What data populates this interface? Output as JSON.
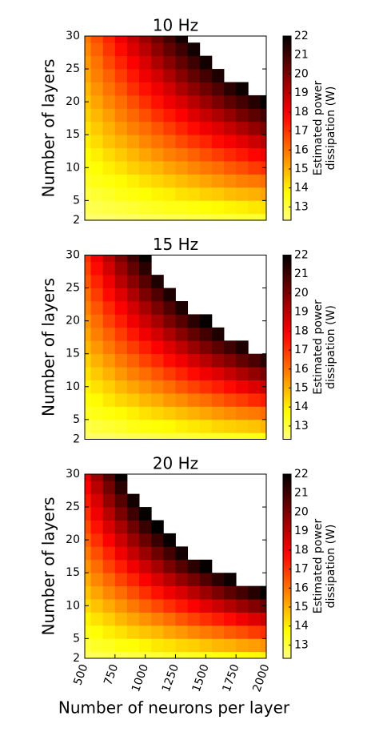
{
  "chart_data": [
    {
      "type": "heatmap",
      "title": "10 Hz",
      "y_label": "Number of layers",
      "colorbar_label": [
        "Estimated power",
        "dissipation (W)"
      ],
      "cmap": "hot_r",
      "x": [
        500,
        600,
        700,
        800,
        900,
        1000,
        1100,
        1200,
        1300,
        1400,
        1500,
        1600,
        1700,
        1800,
        1900,
        2000
      ],
      "y": [
        2,
        4,
        6,
        8,
        10,
        12,
        14,
        16,
        18,
        20,
        22,
        24,
        26,
        28,
        30
      ],
      "values": [
        [
          12.5,
          12.6,
          12.6,
          12.7,
          12.7,
          12.8,
          12.8,
          12.9,
          12.9,
          13.0,
          13.0,
          13.1,
          13.1,
          13.2,
          13.2,
          13.3
        ],
        [
          12.8,
          12.9,
          13.0,
          13.1,
          13.2,
          13.3,
          13.4,
          13.5,
          13.5,
          13.6,
          13.7,
          13.8,
          13.9,
          14.0,
          14.1,
          14.2
        ],
        [
          13.0,
          13.2,
          13.3,
          13.5,
          13.6,
          13.7,
          13.9,
          14.0,
          14.2,
          14.3,
          14.5,
          14.6,
          14.8,
          14.9,
          15.0,
          15.2
        ],
        [
          13.3,
          13.5,
          13.6,
          13.8,
          14.0,
          14.2,
          14.4,
          14.6,
          14.8,
          15.0,
          15.2,
          15.4,
          15.6,
          15.8,
          15.9,
          16.1
        ],
        [
          13.5,
          13.7,
          14.0,
          14.2,
          14.5,
          14.7,
          14.9,
          15.2,
          15.4,
          15.7,
          15.9,
          16.1,
          16.4,
          16.6,
          16.9,
          17.1
        ],
        [
          13.7,
          14.0,
          14.3,
          14.6,
          14.9,
          15.2,
          15.5,
          15.8,
          16.0,
          16.3,
          16.6,
          16.9,
          17.2,
          17.5,
          17.8,
          18.1
        ],
        [
          14.0,
          14.3,
          14.7,
          15.0,
          15.3,
          15.7,
          16.0,
          16.3,
          16.7,
          17.0,
          17.3,
          17.7,
          18.0,
          18.3,
          18.7,
          19.0
        ],
        [
          14.2,
          14.6,
          15.0,
          15.4,
          15.8,
          16.1,
          16.5,
          16.9,
          17.3,
          17.7,
          18.1,
          18.4,
          18.8,
          19.2,
          19.6,
          20.0
        ],
        [
          14.5,
          14.9,
          15.3,
          15.8,
          16.2,
          16.6,
          17.1,
          17.5,
          17.9,
          18.4,
          18.8,
          19.2,
          19.6,
          20.1,
          20.5,
          20.9
        ],
        [
          14.7,
          15.2,
          15.7,
          16.1,
          16.6,
          17.1,
          17.6,
          18.1,
          18.5,
          19.0,
          19.5,
          20.0,
          20.5,
          20.9,
          21.4,
          21.9
        ],
        [
          14.9,
          15.5,
          16.0,
          16.5,
          17.1,
          17.6,
          18.1,
          18.6,
          19.2,
          19.7,
          20.2,
          20.7,
          21.3,
          21.8,
          null,
          null
        ],
        [
          15.2,
          15.8,
          16.3,
          16.9,
          17.5,
          18.1,
          18.6,
          19.2,
          19.8,
          20.4,
          20.9,
          21.5,
          null,
          null,
          null,
          null
        ],
        [
          15.4,
          16.0,
          16.7,
          17.3,
          17.9,
          18.5,
          19.2,
          19.8,
          20.4,
          21.0,
          21.7,
          null,
          null,
          null,
          null,
          null
        ],
        [
          15.7,
          16.3,
          17.0,
          17.7,
          18.4,
          19.0,
          19.7,
          20.4,
          21.0,
          21.7,
          null,
          null,
          null,
          null,
          null,
          null
        ],
        [
          15.9,
          16.6,
          17.3,
          18.1,
          18.8,
          19.5,
          20.2,
          20.9,
          21.7,
          null,
          null,
          null,
          null,
          null,
          null,
          null
        ]
      ],
      "xlim": [
        500,
        2000
      ],
      "ylim": [
        2,
        30
      ],
      "yticks": [
        2,
        5,
        10,
        15,
        20,
        25,
        30
      ],
      "clim": [
        12.3,
        22
      ],
      "cticks": [
        13,
        14,
        15,
        16,
        17,
        18,
        19,
        20,
        21,
        22
      ]
    },
    {
      "type": "heatmap",
      "title": "15 Hz",
      "y_label": "Number of layers",
      "colorbar_label": [
        "Estimated power",
        "dissipation (W)"
      ],
      "cmap": "hot_r",
      "x": [
        500,
        600,
        700,
        800,
        900,
        1000,
        1100,
        1200,
        1300,
        1400,
        1500,
        1600,
        1700,
        1800,
        1900,
        2000
      ],
      "y": [
        2,
        4,
        6,
        8,
        10,
        12,
        14,
        16,
        18,
        20,
        22,
        24,
        26,
        28,
        30
      ],
      "values": [
        [
          12.6,
          12.7,
          12.7,
          12.8,
          12.9,
          12.9,
          13.0,
          13.1,
          13.1,
          13.2,
          13.3,
          13.3,
          13.4,
          13.4,
          13.5,
          13.6
        ],
        [
          12.9,
          13.1,
          13.2,
          13.3,
          13.5,
          13.6,
          13.7,
          13.8,
          14.0,
          14.1,
          14.2,
          14.4,
          14.5,
          14.6,
          14.7,
          14.9
        ],
        [
          13.3,
          13.5,
          13.6,
          13.8,
          14.0,
          14.2,
          14.4,
          14.6,
          14.8,
          15.0,
          15.2,
          15.4,
          15.6,
          15.8,
          15.9,
          16.1
        ],
        [
          13.6,
          13.8,
          14.1,
          14.4,
          14.6,
          14.9,
          15.1,
          15.4,
          15.6,
          15.9,
          16.1,
          16.4,
          16.7,
          16.9,
          17.2,
          17.4
        ],
        [
          13.9,
          14.2,
          14.5,
          14.9,
          15.2,
          15.5,
          15.8,
          16.1,
          16.5,
          16.8,
          17.1,
          17.4,
          17.7,
          18.1,
          18.4,
          18.7
        ],
        [
          14.2,
          14.6,
          15.0,
          15.4,
          15.8,
          16.1,
          16.5,
          16.9,
          17.3,
          17.7,
          18.1,
          18.4,
          18.8,
          19.2,
          19.6,
          20.0
        ],
        [
          14.5,
          15.0,
          15.4,
          15.9,
          16.3,
          16.8,
          17.2,
          17.7,
          18.1,
          18.6,
          19.0,
          19.5,
          19.9,
          20.4,
          20.8,
          21.3
        ],
        [
          14.9,
          15.4,
          15.9,
          16.4,
          16.9,
          17.4,
          17.9,
          18.4,
          18.9,
          19.5,
          20.0,
          20.5,
          21.0,
          21.5,
          null,
          null
        ],
        [
          15.2,
          15.8,
          16.3,
          16.9,
          17.5,
          18.1,
          18.6,
          19.2,
          19.8,
          20.4,
          20.9,
          21.5,
          null,
          null,
          null,
          null
        ],
        [
          15.5,
          16.1,
          16.8,
          17.4,
          18.1,
          18.7,
          19.3,
          20.0,
          20.6,
          21.3,
          21.9,
          null,
          null,
          null,
          null,
          null
        ],
        [
          15.8,
          16.5,
          17.2,
          17.9,
          18.6,
          19.3,
          20.0,
          20.7,
          21.5,
          null,
          null,
          null,
          null,
          null,
          null,
          null
        ],
        [
          16.1,
          16.9,
          17.7,
          18.4,
          19.2,
          20.0,
          20.7,
          21.5,
          null,
          null,
          null,
          null,
          null,
          null,
          null,
          null
        ],
        [
          16.5,
          17.3,
          18.1,
          19.0,
          19.8,
          20.6,
          21.5,
          null,
          null,
          null,
          null,
          null,
          null,
          null,
          null,
          null
        ],
        [
          16.8,
          17.7,
          18.6,
          19.5,
          20.4,
          21.3,
          null,
          null,
          null,
          null,
          null,
          null,
          null,
          null,
          null,
          null
        ],
        [
          17.1,
          18.1,
          19.0,
          20.0,
          21.0,
          21.9,
          null,
          null,
          null,
          null,
          null,
          null,
          null,
          null,
          null,
          null
        ]
      ],
      "xlim": [
        500,
        2000
      ],
      "ylim": [
        2,
        30
      ],
      "yticks": [
        2,
        5,
        10,
        15,
        20,
        25,
        30
      ],
      "clim": [
        12.3,
        22
      ],
      "cticks": [
        13,
        14,
        15,
        16,
        17,
        18,
        19,
        20,
        21,
        22
      ]
    },
    {
      "type": "heatmap",
      "title": "20 Hz",
      "y_label": "Number of layers",
      "x_label": "Number of neurons per layer",
      "colorbar_label": [
        "Estimated power",
        "dissipation (W)"
      ],
      "cmap": "hot_r",
      "x": [
        500,
        600,
        700,
        800,
        900,
        1000,
        1100,
        1200,
        1300,
        1400,
        1500,
        1600,
        1700,
        1800,
        1900,
        2000
      ],
      "y": [
        2,
        4,
        6,
        8,
        10,
        12,
        14,
        16,
        18,
        20,
        22,
        24,
        26,
        28,
        30
      ],
      "values": [
        [
          12.7,
          12.8,
          12.9,
          12.9,
          13.0,
          13.1,
          13.2,
          13.3,
          13.3,
          13.4,
          13.5,
          13.6,
          13.7,
          13.7,
          13.8,
          13.9
        ],
        [
          13.1,
          13.3,
          13.4,
          13.6,
          13.7,
          13.9,
          14.1,
          14.2,
          14.4,
          14.5,
          14.7,
          14.9,
          15.0,
          15.2,
          15.3,
          15.5
        ],
        [
          13.5,
          13.7,
          14.0,
          14.2,
          14.5,
          14.7,
          14.9,
          15.2,
          15.4,
          15.7,
          15.9,
          16.1,
          16.4,
          16.6,
          16.9,
          17.1
        ],
        [
          13.9,
          14.2,
          14.5,
          14.9,
          15.2,
          15.5,
          15.8,
          16.1,
          16.5,
          16.8,
          17.1,
          17.4,
          17.7,
          18.1,
          18.4,
          18.7
        ],
        [
          14.3,
          14.7,
          15.1,
          15.5,
          15.9,
          16.3,
          16.7,
          17.1,
          17.5,
          17.9,
          18.3,
          18.7,
          19.1,
          19.5,
          19.9,
          20.3
        ],
        [
          14.7,
          15.2,
          15.7,
          16.1,
          16.6,
          17.1,
          17.6,
          18.1,
          18.5,
          19.0,
          19.5,
          20.0,
          20.5,
          20.9,
          21.4,
          21.9
        ],
        [
          15.1,
          15.7,
          16.2,
          16.8,
          17.3,
          17.9,
          18.5,
          19.0,
          19.6,
          20.1,
          20.7,
          21.3,
          21.8,
          null,
          null,
          null
        ],
        [
          15.5,
          16.1,
          16.8,
          17.4,
          18.1,
          18.7,
          19.3,
          20.0,
          20.6,
          21.3,
          21.9,
          null,
          null,
          null,
          null,
          null
        ],
        [
          15.9,
          16.6,
          17.3,
          18.1,
          18.8,
          19.5,
          20.2,
          20.9,
          21.7,
          null,
          null,
          null,
          null,
          null,
          null,
          null
        ],
        [
          16.3,
          17.1,
          17.9,
          18.7,
          19.5,
          20.3,
          21.1,
          21.9,
          null,
          null,
          null,
          null,
          null,
          null,
          null,
          null
        ],
        [
          16.7,
          17.6,
          18.5,
          19.3,
          20.2,
          21.1,
          22.0,
          null,
          null,
          null,
          null,
          null,
          null,
          null,
          null,
          null
        ],
        [
          17.1,
          18.1,
          19.0,
          20.0,
          21.0,
          21.9,
          null,
          null,
          null,
          null,
          null,
          null,
          null,
          null,
          null,
          null
        ],
        [
          17.5,
          18.5,
          19.6,
          20.6,
          21.7,
          null,
          null,
          null,
          null,
          null,
          null,
          null,
          null,
          null,
          null,
          null
        ],
        [
          17.9,
          19.0,
          20.1,
          21.3,
          null,
          null,
          null,
          null,
          null,
          null,
          null,
          null,
          null,
          null,
          null,
          null
        ],
        [
          18.3,
          19.5,
          20.7,
          21.9,
          null,
          null,
          null,
          null,
          null,
          null,
          null,
          null,
          null,
          null,
          null,
          null
        ]
      ],
      "xlim": [
        500,
        2000
      ],
      "ylim": [
        2,
        30
      ],
      "xticks": [
        500,
        750,
        1000,
        1250,
        1500,
        1750,
        2000
      ],
      "yticks": [
        2,
        5,
        10,
        15,
        20,
        25,
        30
      ],
      "clim": [
        12.3,
        22
      ],
      "cticks": [
        13,
        14,
        15,
        16,
        17,
        18,
        19,
        20,
        21,
        22
      ]
    }
  ]
}
